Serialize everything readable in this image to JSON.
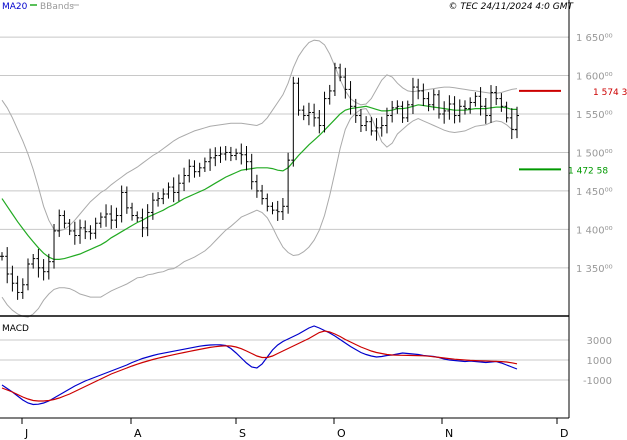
{
  "legend": {
    "ma20_label": "MA20",
    "bbands_label": "BBands"
  },
  "copyright": "© TEC 24/11/2024 4:0 GMT",
  "colors": {
    "price": "#000000",
    "ma20": "#22aa22",
    "bbands": "#aaaaaa",
    "macd": "#0000cc",
    "signal": "#cc0000",
    "grid": "#c8c8c8",
    "marker_red": "#cc0000",
    "marker_green": "#009900"
  },
  "chart_data": [
    {
      "type": "ohlc",
      "panel": "price",
      "x_tick_labels": [
        "J",
        "A",
        "S",
        "O",
        "N",
        "D"
      ],
      "y_tick_labels": [
        "1 650⁰⁰",
        "1 600⁰⁰",
        "1 550⁰⁰",
        "1 500⁰⁰",
        "1 450⁰⁰",
        "1 400⁰⁰",
        "1 350⁰⁰"
      ],
      "y_ticks": [
        1650,
        1600,
        1550,
        1500,
        1450,
        1400,
        1350
      ],
      "ylim": [
        1290,
        1680
      ],
      "annotations": [
        {
          "label": "1 574 3",
          "value": 1580,
          "color": "red"
        },
        {
          "label": "1 472 58",
          "value": 1478,
          "color": "green"
        }
      ],
      "close": [
        1365,
        1342,
        1330,
        1318,
        1328,
        1355,
        1362,
        1350,
        1345,
        1358,
        1398,
        1418,
        1408,
        1398,
        1392,
        1402,
        1397,
        1395,
        1408,
        1416,
        1420,
        1412,
        1418,
        1448,
        1428,
        1418,
        1415,
        1402,
        1422,
        1438,
        1440,
        1446,
        1455,
        1448,
        1460,
        1470,
        1482,
        1475,
        1480,
        1488,
        1493,
        1496,
        1498,
        1500,
        1496,
        1499,
        1497,
        1488,
        1462,
        1450,
        1440,
        1430,
        1425,
        1423,
        1430,
        1490,
        1590,
        1555,
        1548,
        1552,
        1545,
        1535,
        1570,
        1580,
        1610,
        1598,
        1582,
        1560,
        1548,
        1535,
        1540,
        1528,
        1532,
        1535,
        1548,
        1558,
        1560,
        1545,
        1562,
        1585,
        1580,
        1570,
        1562,
        1575,
        1550,
        1554,
        1563,
        1548,
        1560,
        1557,
        1565,
        1573,
        1560,
        1548,
        1578,
        1570,
        1560,
        1545,
        1530,
        1548
      ],
      "series": [
        {
          "name": "MA20",
          "values": [
            1440,
            1430,
            1420,
            1410,
            1401,
            1392,
            1384,
            1376,
            1369,
            1364,
            1361,
            1361,
            1362,
            1364,
            1366,
            1368,
            1371,
            1374,
            1377,
            1380,
            1384,
            1389,
            1393,
            1397,
            1401,
            1405,
            1409,
            1412,
            1416,
            1419,
            1422,
            1425,
            1429,
            1432,
            1436,
            1440,
            1443,
            1446,
            1449,
            1452,
            1456,
            1460,
            1464,
            1468,
            1471,
            1474,
            1477,
            1478,
            1479,
            1480,
            1480,
            1480,
            1479,
            1477,
            1476,
            1480,
            1488,
            1496,
            1503,
            1510,
            1516,
            1522,
            1529,
            1536,
            1543,
            1550,
            1555,
            1557,
            1558,
            1559,
            1560,
            1558,
            1556,
            1554,
            1554,
            1555,
            1557,
            1557,
            1558,
            1560,
            1562,
            1561,
            1560,
            1559,
            1558,
            1557,
            1556,
            1555,
            1555,
            1555,
            1556,
            1557,
            1557,
            1557,
            1558,
            1559,
            1559,
            1558,
            1556,
            1556
          ]
        },
        {
          "name": "BBands",
          "values": [
            1568,
            1558,
            1545,
            1530,
            1515,
            1498,
            1478,
            1455,
            1430,
            1412,
            1400,
            1398,
            1400,
            1405,
            1412,
            1420,
            1428,
            1436,
            1442,
            1448,
            1452,
            1458,
            1463,
            1468,
            1473,
            1477,
            1481,
            1486,
            1491,
            1496,
            1500,
            1505,
            1510,
            1515,
            1519,
            1522,
            1525,
            1528,
            1530,
            1532,
            1534,
            1535,
            1536,
            1537,
            1538,
            1538,
            1538,
            1537,
            1536,
            1535,
            1538,
            1545,
            1555,
            1565,
            1575,
            1590,
            1610,
            1625,
            1635,
            1643,
            1646,
            1645,
            1640,
            1628,
            1612,
            1595,
            1580,
            1570,
            1565,
            1562,
            1563,
            1570,
            1582,
            1594,
            1601,
            1598,
            1590,
            1584,
            1580,
            1579,
            1580,
            1581,
            1582,
            1583,
            1584,
            1585,
            1585,
            1584,
            1583,
            1582,
            1581,
            1580,
            1579,
            1578,
            1577,
            1577,
            1578,
            1580,
            1582,
            1583
          ]
        },
        {
          "name": "BBands",
          "values": [
            1312,
            1302,
            1295,
            1290,
            1287,
            1286,
            1290,
            1297,
            1308,
            1316,
            1322,
            1324,
            1324,
            1323,
            1320,
            1316,
            1314,
            1312,
            1312,
            1312,
            1316,
            1320,
            1323,
            1326,
            1329,
            1333,
            1337,
            1338,
            1341,
            1342,
            1344,
            1345,
            1348,
            1349,
            1353,
            1358,
            1361,
            1364,
            1368,
            1372,
            1378,
            1385,
            1392,
            1399,
            1404,
            1410,
            1416,
            1419,
            1422,
            1425,
            1422,
            1415,
            1403,
            1389,
            1377,
            1370,
            1366,
            1367,
            1371,
            1377,
            1386,
            1399,
            1418,
            1444,
            1474,
            1505,
            1530,
            1544,
            1551,
            1556,
            1557,
            1546,
            1530,
            1514,
            1507,
            1512,
            1524,
            1530,
            1536,
            1541,
            1544,
            1541,
            1538,
            1535,
            1532,
            1529,
            1527,
            1526,
            1527,
            1528,
            1531,
            1534,
            1535,
            1536,
            1539,
            1541,
            1540,
            1536,
            1530,
            1529
          ]
        }
      ]
    },
    {
      "type": "line",
      "panel": "macd",
      "title": "MACD",
      "y_tick_labels": [
        "3000",
        "1000",
        "-1000"
      ],
      "y_ticks": [
        3000,
        1000,
        -1000
      ],
      "ylim": [
        -4600,
        5000
      ],
      "series": [
        {
          "name": "MACD",
          "values": [
            -1500,
            -1850,
            -2200,
            -2600,
            -3000,
            -3300,
            -3450,
            -3420,
            -3300,
            -3100,
            -2800,
            -2500,
            -2200,
            -1900,
            -1600,
            -1350,
            -1100,
            -900,
            -700,
            -500,
            -300,
            -100,
            100,
            300,
            500,
            750,
            950,
            1150,
            1300,
            1450,
            1580,
            1680,
            1780,
            1880,
            1980,
            2080,
            2180,
            2280,
            2380,
            2450,
            2500,
            2520,
            2520,
            2450,
            2150,
            1700,
            1200,
            700,
            300,
            200,
            600,
            1300,
            2000,
            2500,
            2850,
            3100,
            3350,
            3600,
            3900,
            4200,
            4400,
            4200,
            3950,
            3700,
            3400,
            3050,
            2700,
            2350,
            2050,
            1750,
            1550,
            1400,
            1300,
            1350,
            1450,
            1500,
            1600,
            1700,
            1650,
            1600,
            1550,
            1450,
            1400,
            1350,
            1250,
            1100,
            1000,
            950,
            900,
            850,
            900,
            850,
            800,
            750,
            800,
            850,
            700,
            500,
            300,
            100
          ]
        },
        {
          "name": "Signal",
          "values": [
            -1800,
            -2000,
            -2200,
            -2450,
            -2700,
            -2900,
            -3050,
            -3100,
            -3100,
            -3050,
            -2950,
            -2800,
            -2600,
            -2400,
            -2150,
            -1900,
            -1650,
            -1400,
            -1150,
            -900,
            -650,
            -400,
            -200,
            0,
            200,
            400,
            580,
            750,
            900,
            1050,
            1180,
            1300,
            1420,
            1530,
            1640,
            1750,
            1860,
            1960,
            2060,
            2160,
            2260,
            2330,
            2390,
            2420,
            2400,
            2300,
            2130,
            1900,
            1650,
            1400,
            1250,
            1250,
            1400,
            1650,
            1900,
            2150,
            2400,
            2650,
            2900,
            3150,
            3450,
            3750,
            3900,
            3800,
            3600,
            3350,
            3050,
            2800,
            2550,
            2300,
            2100,
            1900,
            1750,
            1650,
            1550,
            1500,
            1480,
            1470,
            1460,
            1450,
            1440,
            1420,
            1380,
            1320,
            1260,
            1200,
            1140,
            1080,
            1040,
            1000,
            960,
            940,
            920,
            900,
            880,
            860,
            840,
            800,
            720,
            620
          ]
        }
      ]
    }
  ]
}
